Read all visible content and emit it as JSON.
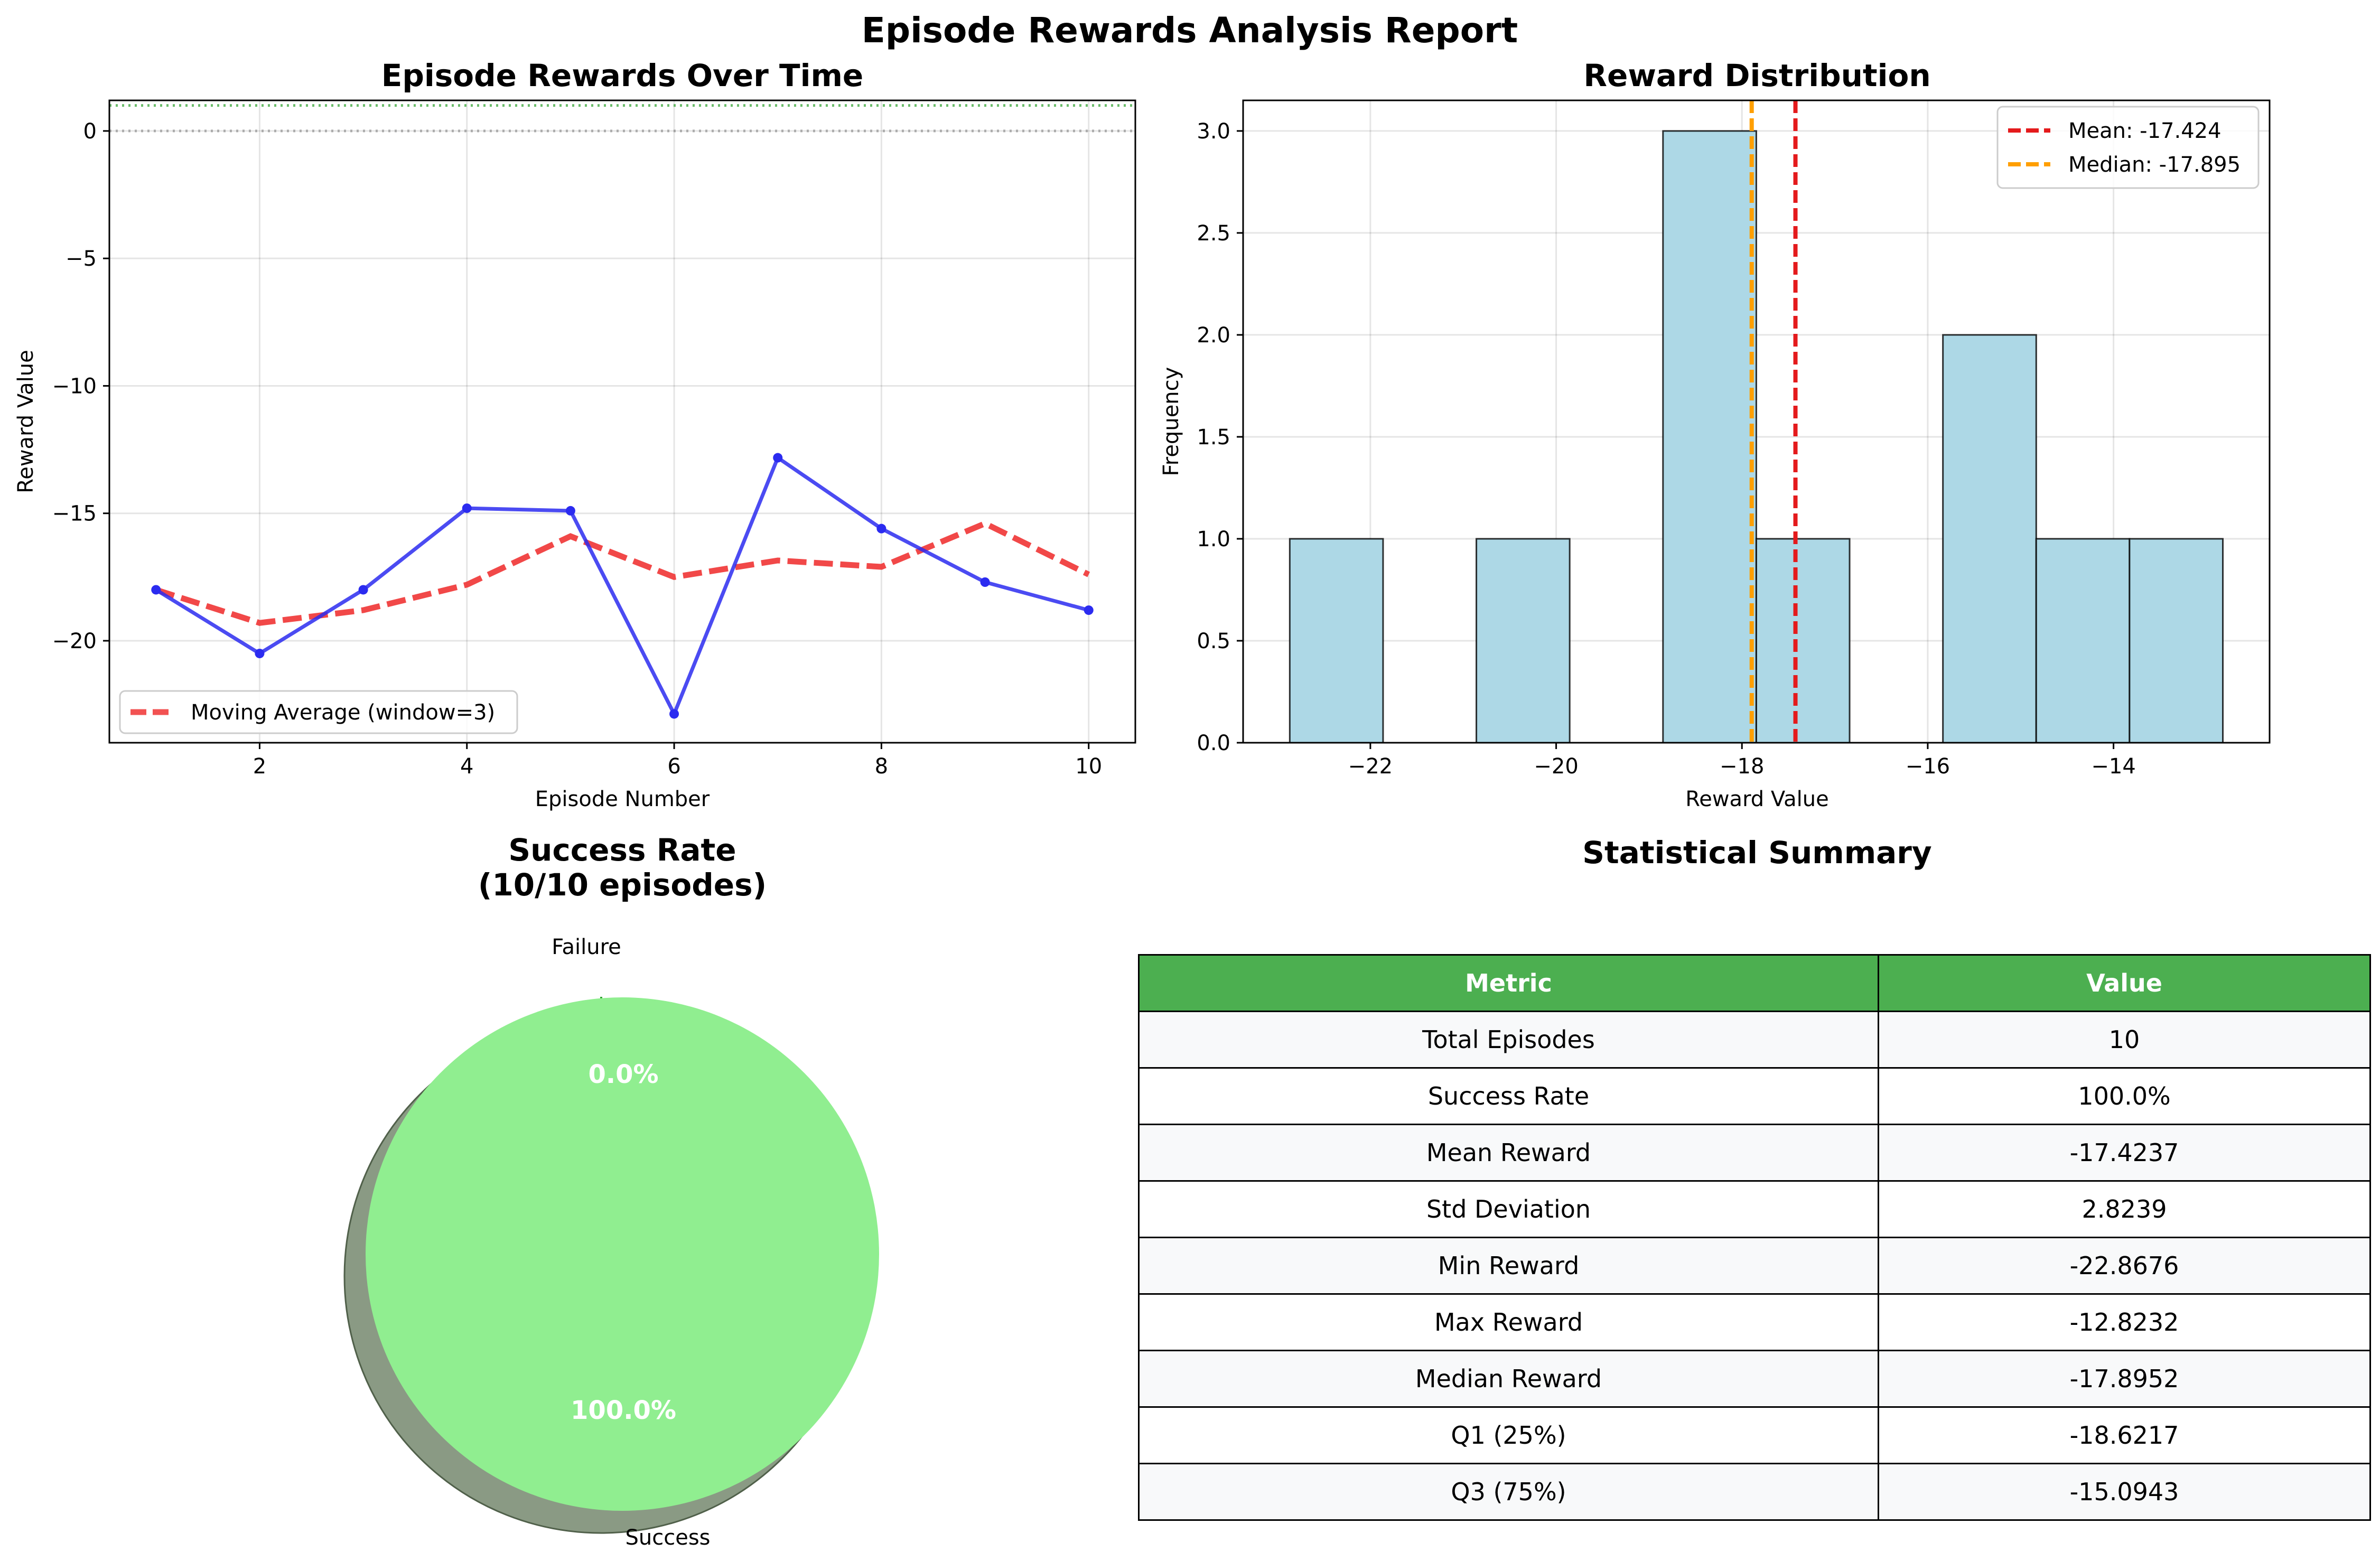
{
  "suptitle": "Episode Rewards Analysis Report",
  "colors": {
    "reward_line": "#2b2bf0",
    "moving_avg": "#f03434",
    "hist_bar": "#add8e6",
    "mean_line": "#e41a1c",
    "median_line": "#ff9f00",
    "success": "#90ee90",
    "table_header": "#4caf50",
    "success_line": "#2ca02c"
  },
  "line_chart": {
    "title": "Episode Rewards Over Time",
    "xlabel": "Episode Number",
    "ylabel": "Reward Value",
    "x_ticks": [
      "2",
      "4",
      "6",
      "8",
      "10"
    ],
    "y_ticks": [
      "0",
      "−5",
      "−10",
      "−15",
      "−20"
    ],
    "legend": "Moving Average (window=3)"
  },
  "histogram": {
    "title": "Reward Distribution",
    "xlabel": "Reward Value",
    "ylabel": "Frequency",
    "x_ticks": [
      "−22",
      "−20",
      "−18",
      "−16",
      "−14"
    ],
    "y_ticks": [
      "0.0",
      "0.5",
      "1.0",
      "1.5",
      "2.0",
      "2.5",
      "3.0"
    ],
    "legend_mean": "Mean: -17.424",
    "legend_median": "Median: -17.895"
  },
  "pie": {
    "title_line1": "Success Rate",
    "title_line2": "(10/10 episodes)",
    "label_failure": "Failure",
    "label_success": "Success",
    "pct_failure": "0.0%",
    "pct_success": "100.0%"
  },
  "summary": {
    "title": "Statistical Summary",
    "headers": [
      "Metric",
      "Value"
    ],
    "rows": [
      [
        "Total Episodes",
        "10"
      ],
      [
        "Success Rate",
        "100.0%"
      ],
      [
        "Mean Reward",
        "-17.4237"
      ],
      [
        "Std Deviation",
        "2.8239"
      ],
      [
        "Min Reward",
        "-22.8676"
      ],
      [
        "Max Reward",
        "-12.8232"
      ],
      [
        "Median Reward",
        "-17.8952"
      ],
      [
        "Q1 (25%)",
        "-18.6217"
      ],
      [
        "Q3 (75%)",
        "-15.0943"
      ]
    ]
  },
  "chart_data": [
    {
      "type": "line",
      "title": "Episode Rewards Over Time",
      "xlabel": "Episode Number",
      "ylabel": "Reward Value",
      "x": [
        1,
        2,
        3,
        4,
        5,
        6,
        7,
        8,
        9,
        10
      ],
      "series": [
        {
          "values": [
            -18.0,
            -20.5,
            -18.0,
            -14.8,
            -14.9,
            -22.87,
            -12.82,
            -15.6,
            -17.7,
            -18.8
          ]
        },
        {
          "name": "Moving Average (window=3)",
          "values": [
            -18.0,
            -19.3,
            -18.8,
            -17.8,
            -15.9,
            -17.5,
            -16.85,
            -17.1,
            -15.4,
            -17.4
          ]
        }
      ],
      "reference_lines": [
        0,
        1
      ],
      "xlim": [
        0.55,
        10.45
      ],
      "ylim": [
        -24.0,
        1.2
      ],
      "grid": true,
      "legend": "lower-left"
    },
    {
      "type": "bar",
      "title": "Reward Distribution",
      "xlabel": "Reward Value",
      "ylabel": "Frequency",
      "bins": [
        {
          "start": -22.8676,
          "end": -21.8632,
          "count": 1
        },
        {
          "start": -21.8632,
          "end": -20.8588,
          "count": 0
        },
        {
          "start": -20.8588,
          "end": -19.8543,
          "count": 1
        },
        {
          "start": -19.8543,
          "end": -18.8499,
          "count": 0
        },
        {
          "start": -18.8499,
          "end": -17.8454,
          "count": 3
        },
        {
          "start": -17.8454,
          "end": -16.841,
          "count": 1
        },
        {
          "start": -16.841,
          "end": -15.8365,
          "count": 0
        },
        {
          "start": -15.8365,
          "end": -14.8321,
          "count": 2
        },
        {
          "start": -14.8321,
          "end": -13.8276,
          "count": 1
        },
        {
          "start": -13.8276,
          "end": -12.8232,
          "count": 1
        }
      ],
      "mean": -17.424,
      "median": -17.895,
      "xlim": [
        -23.37,
        -12.32
      ],
      "ylim": [
        0,
        3.15
      ],
      "grid": true,
      "legend": "top-right"
    },
    {
      "type": "pie",
      "title": "Success Rate\n(10/10 episodes)",
      "labels": [
        "Success",
        "Failure"
      ],
      "values": [
        100.0,
        0.0
      ]
    }
  ]
}
